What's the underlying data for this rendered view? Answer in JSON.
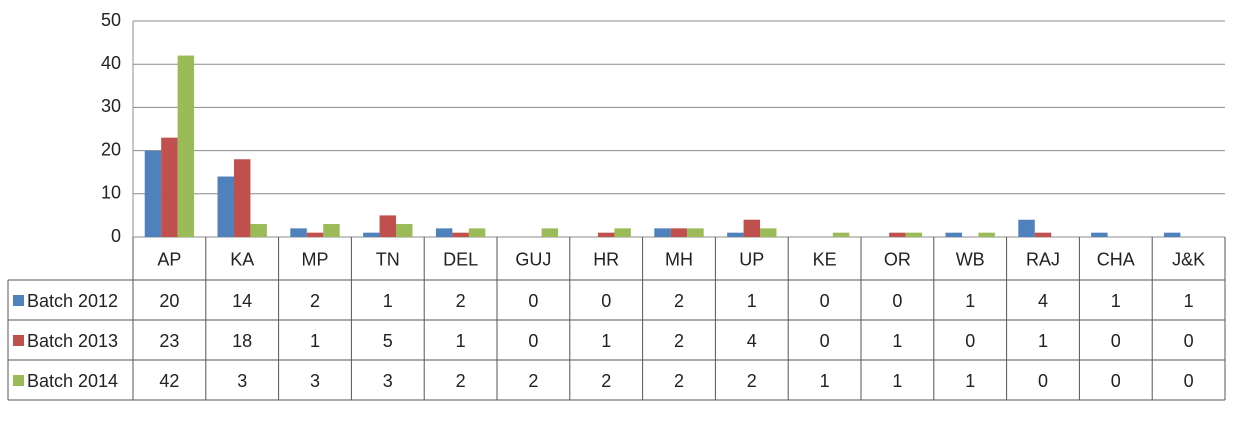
{
  "chart_data": {
    "type": "bar",
    "categories": [
      "AP",
      "KA",
      "MP",
      "TN",
      "DEL",
      "GUJ",
      "HR",
      "MH",
      "UP",
      "KE",
      "OR",
      "WB",
      "RAJ",
      "CHA",
      "J&K"
    ],
    "series": [
      {
        "name": "Batch 2012",
        "color": "#4f81bd",
        "values": [
          20,
          14,
          2,
          1,
          2,
          0,
          0,
          2,
          1,
          0,
          0,
          1,
          4,
          1,
          1
        ]
      },
      {
        "name": "Batch 2013",
        "color": "#c0504d",
        "values": [
          23,
          18,
          1,
          5,
          1,
          0,
          1,
          2,
          4,
          0,
          1,
          0,
          1,
          0,
          0
        ]
      },
      {
        "name": "Batch 2014",
        "color": "#9bbb59",
        "values": [
          42,
          3,
          3,
          3,
          2,
          2,
          2,
          2,
          2,
          1,
          1,
          1,
          0,
          0,
          0
        ]
      }
    ],
    "ylim": [
      0,
      50
    ],
    "yticks": [
      0,
      10,
      20,
      30,
      40,
      50
    ],
    "grid": true,
    "data_table": true
  }
}
